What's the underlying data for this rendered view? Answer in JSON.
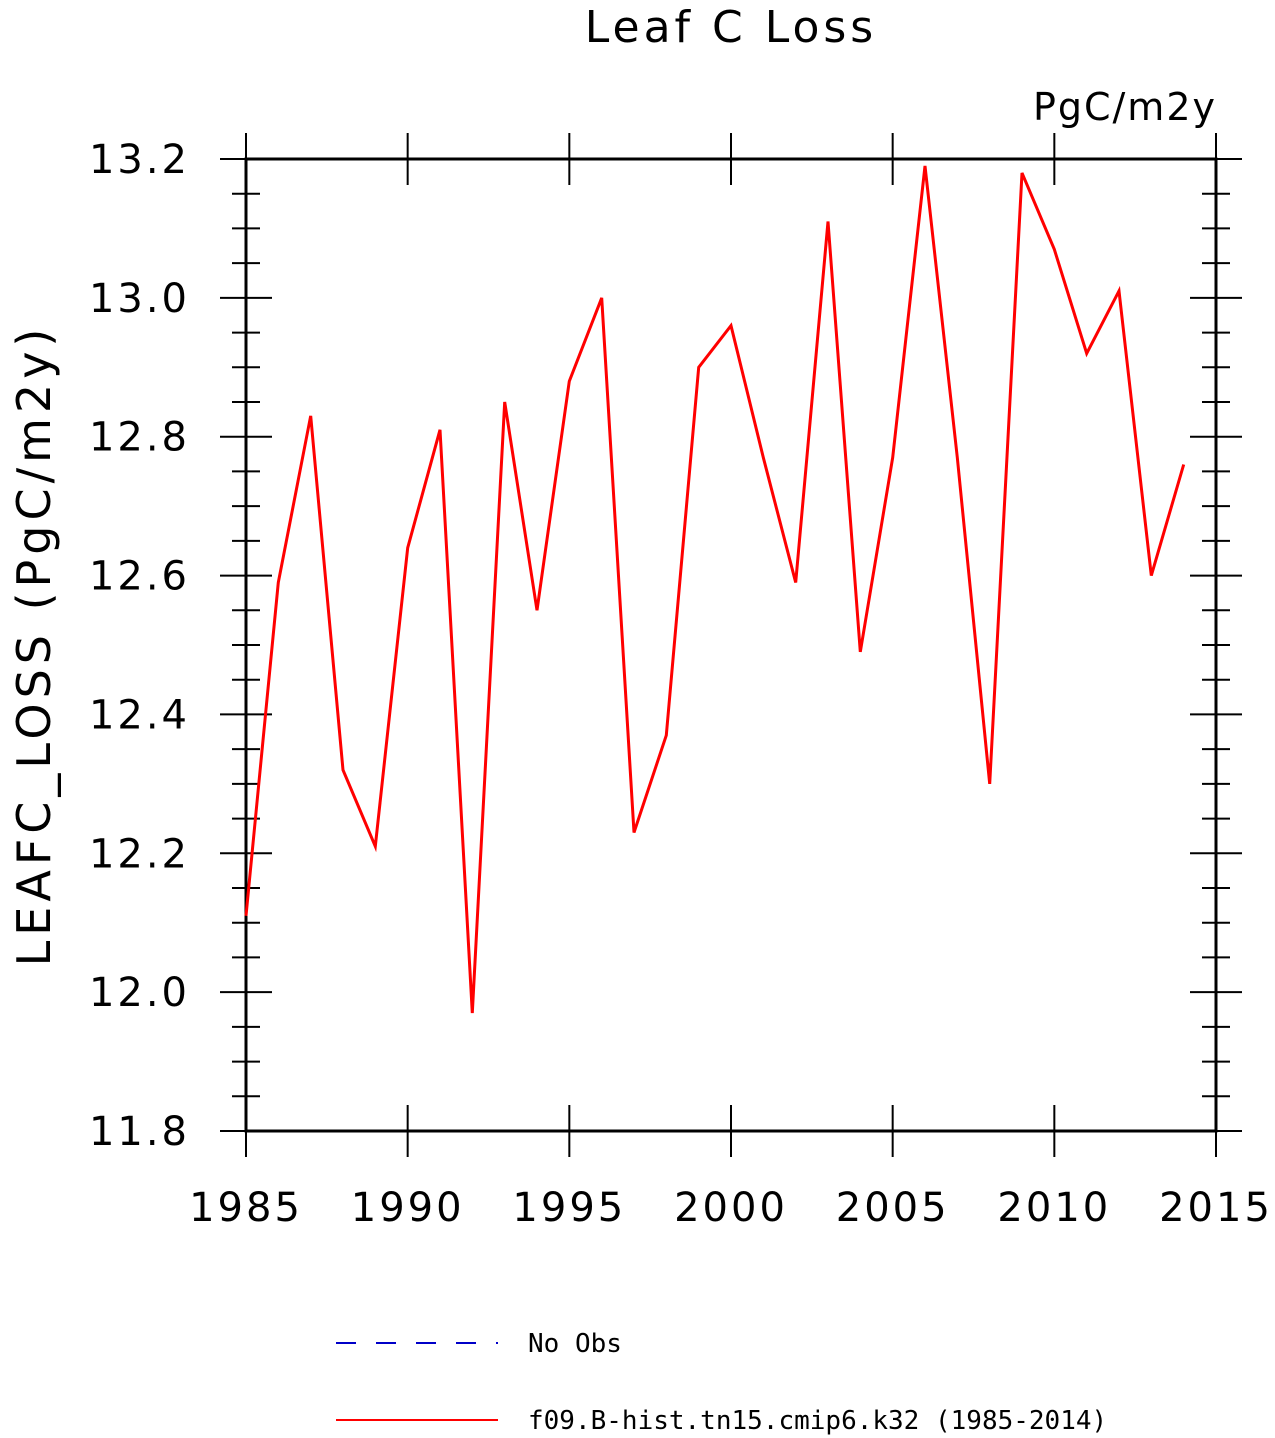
{
  "chart_data": {
    "type": "line",
    "title": "Leaf C Loss",
    "units_label": "PgC/m2y",
    "ylabel": "LEAFC_LOSS  (PgC/m2y)",
    "xlabel": "",
    "xlim": [
      1985,
      2015
    ],
    "ylim": [
      11.8,
      13.2
    ],
    "x_ticks": [
      "1985",
      "1990",
      "1995",
      "2000",
      "2005",
      "2010",
      "2015"
    ],
    "y_ticks": [
      "11.8",
      "12.0",
      "12.2",
      "12.4",
      "12.6",
      "12.8",
      "13.0",
      "13.2"
    ],
    "x_tick_values": [
      1985,
      1990,
      1995,
      2000,
      2005,
      2010,
      2015
    ],
    "y_tick_values": [
      11.8,
      12.0,
      12.2,
      12.4,
      12.6,
      12.8,
      13.0,
      13.2
    ],
    "grid": false,
    "legend_placement": "bottom",
    "series": [
      {
        "name": "f09.B-hist.tn15.cmip6.k32 (1985-2014)",
        "color": "#ff0000",
        "style": "solid",
        "x": [
          1985,
          1986,
          1987,
          1988,
          1989,
          1990,
          1991,
          1992,
          1993,
          1994,
          1995,
          1996,
          1997,
          1998,
          1999,
          2000,
          2001,
          2002,
          2003,
          2004,
          2005,
          2006,
          2007,
          2008,
          2009,
          2010,
          2011,
          2012,
          2013,
          2014
        ],
        "values": [
          12.11,
          12.59,
          12.83,
          12.32,
          12.21,
          12.64,
          12.81,
          11.97,
          12.85,
          12.55,
          12.88,
          13.0,
          12.23,
          12.37,
          12.9,
          12.96,
          12.77,
          12.59,
          13.11,
          12.49,
          12.77,
          13.19,
          12.77,
          12.3,
          13.18,
          13.07,
          12.92,
          13.01,
          12.6,
          12.76
        ]
      }
    ],
    "legend": [
      {
        "label": "No Obs",
        "color": "#0000c8",
        "style": "dashed"
      },
      {
        "label": "f09.B-hist.tn15.cmip6.k32 (1985-2014)",
        "color": "#ff0000",
        "style": "solid"
      }
    ]
  }
}
